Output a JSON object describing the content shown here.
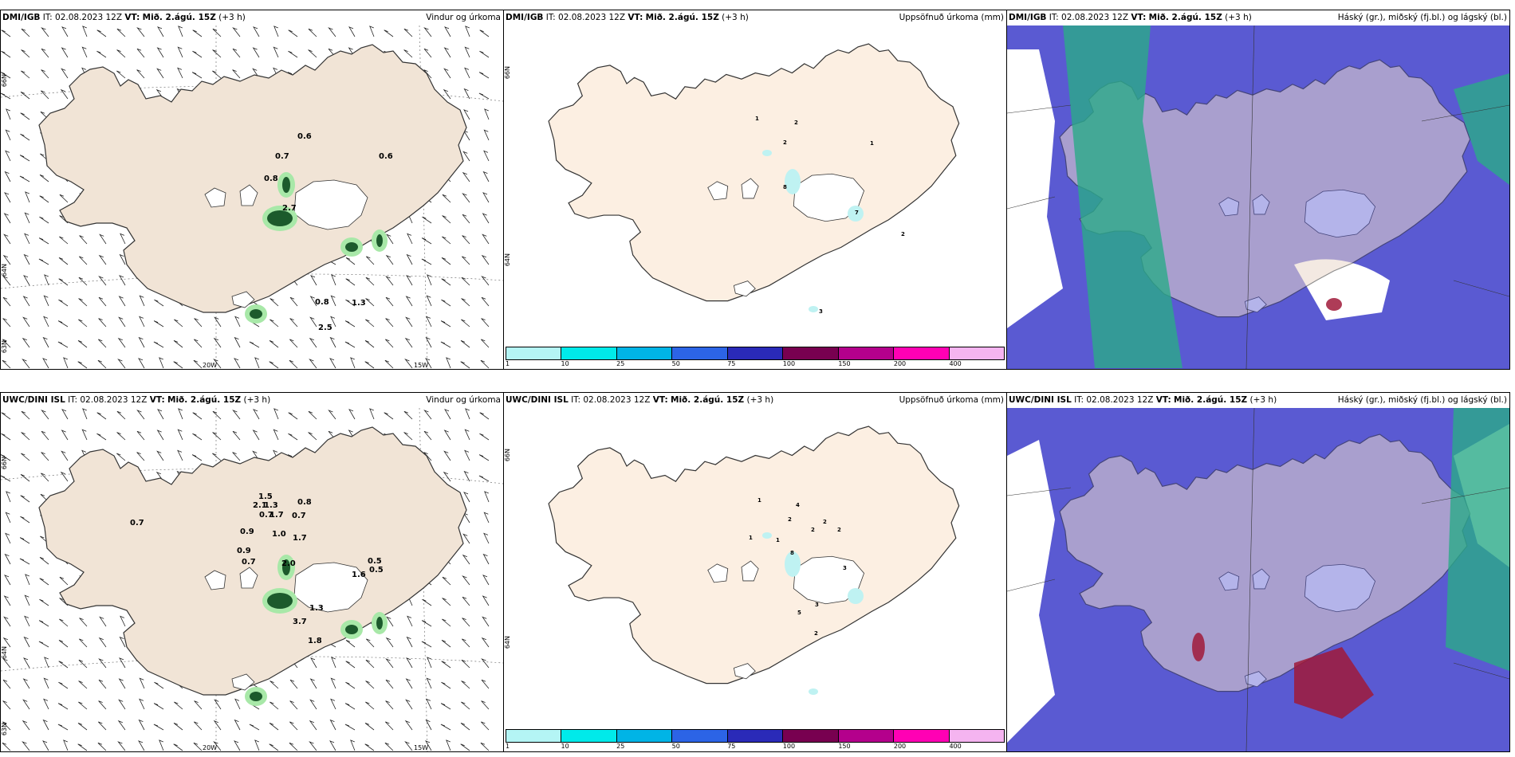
{
  "panels": {
    "p1": {
      "model": "DMI/IGB",
      "it_label": "IT:",
      "it": "02.08.2023 12Z",
      "vt_label": "VT:",
      "vt": "Mið. 2.ágú. 15Z",
      "lead": "(+3 h)",
      "title": "Vindur og úrkoma",
      "axes": {
        "y_top": "66N",
        "y_mid": "64N",
        "y_bot": "63N",
        "x_left": "20W",
        "x_right": "15W"
      },
      "labels": [
        "0.6",
        "0.7",
        "0.6",
        "0.8",
        "2.7",
        "0.8",
        "1.3",
        "2.5"
      ]
    },
    "p2": {
      "model": "DMI/IGB",
      "it_label": "IT:",
      "it": "02.08.2023 12Z",
      "vt_label": "VT:",
      "vt": "Mið. 2.ágú. 15Z",
      "lead": "(+3 h)",
      "title": "Uppsöfnuð úrkoma (mm)",
      "axes": {
        "y_top": "66N",
        "y_mid": "64N"
      },
      "labels": [
        "1",
        "2",
        "2",
        "1",
        "8",
        "7",
        "2",
        "3"
      ]
    },
    "p3": {
      "model": "DMI/IGB",
      "it_label": "IT:",
      "it": "02.08.2023 12Z",
      "vt_label": "VT:",
      "vt": "Mið. 2.ágú. 15Z",
      "lead": "(+3 h)",
      "title": "Háský (gr.), miðský (fj.bl.) og lágský (bl.)"
    },
    "p4": {
      "model": "UWC/DINI ISL",
      "it_label": "IT:",
      "it": "02.08.2023 12Z",
      "vt_label": "VT:",
      "vt": "Mið. 2.ágú. 15Z",
      "lead": "(+3 h)",
      "title": "Vindur og úrkoma",
      "axes": {
        "y_top": "66N",
        "y_mid": "64N",
        "y_bot": "63N",
        "x_left": "20W",
        "x_right": "15W"
      },
      "labels": [
        "0.7",
        "1.5",
        "2.1",
        "1.3",
        "0.7",
        "1.7",
        "0.8",
        "0.7",
        "0.9",
        "1.0",
        "1.7",
        "0.9",
        "0.7",
        "2.0",
        "0.5",
        "0.5",
        "1.6",
        "1.3",
        "3.7",
        "1.8"
      ]
    },
    "p5": {
      "model": "UWC/DINI ISL",
      "it_label": "IT:",
      "it": "02.08.2023 12Z",
      "vt_label": "VT:",
      "vt": "Mið. 2.ágú. 15Z",
      "lead": "(+3 h)",
      "title": "Uppsöfnuð úrkoma (mm)",
      "axes": {
        "y_top": "66N",
        "y_mid": "64N"
      },
      "labels": [
        "1",
        "4",
        "2",
        "2",
        "2",
        "2",
        "1",
        "1",
        "8",
        "3",
        "3",
        "5",
        "2"
      ]
    },
    "p6": {
      "model": "UWC/DINI ISL",
      "it_label": "IT:",
      "it": "02.08.2023 12Z",
      "vt_label": "VT:",
      "vt": "Mið. 2.ágú. 15Z",
      "lead": "(+3 h)",
      "title": "Háský (gr.), miðský (fj.bl.) og lágský (bl.)"
    }
  },
  "colorbar": {
    "ticks": [
      "1",
      "10",
      "25",
      "50",
      "75",
      "100",
      "150",
      "200",
      "400"
    ],
    "colors": [
      "#b4f5f5",
      "#00eaea",
      "#00b4e6",
      "#2c64e6",
      "#2a2ab8",
      "#780050",
      "#b4008c",
      "#ff00b4",
      "#f5b4f0"
    ]
  },
  "colors": {
    "land": "#f1e4d6",
    "land_precip": "#fcefe2",
    "glacier": "#ffffff",
    "cloud_low": "#5a5ad2",
    "cloud_high": "#2aaa88",
    "cloud_mid": "#a01a3a"
  }
}
